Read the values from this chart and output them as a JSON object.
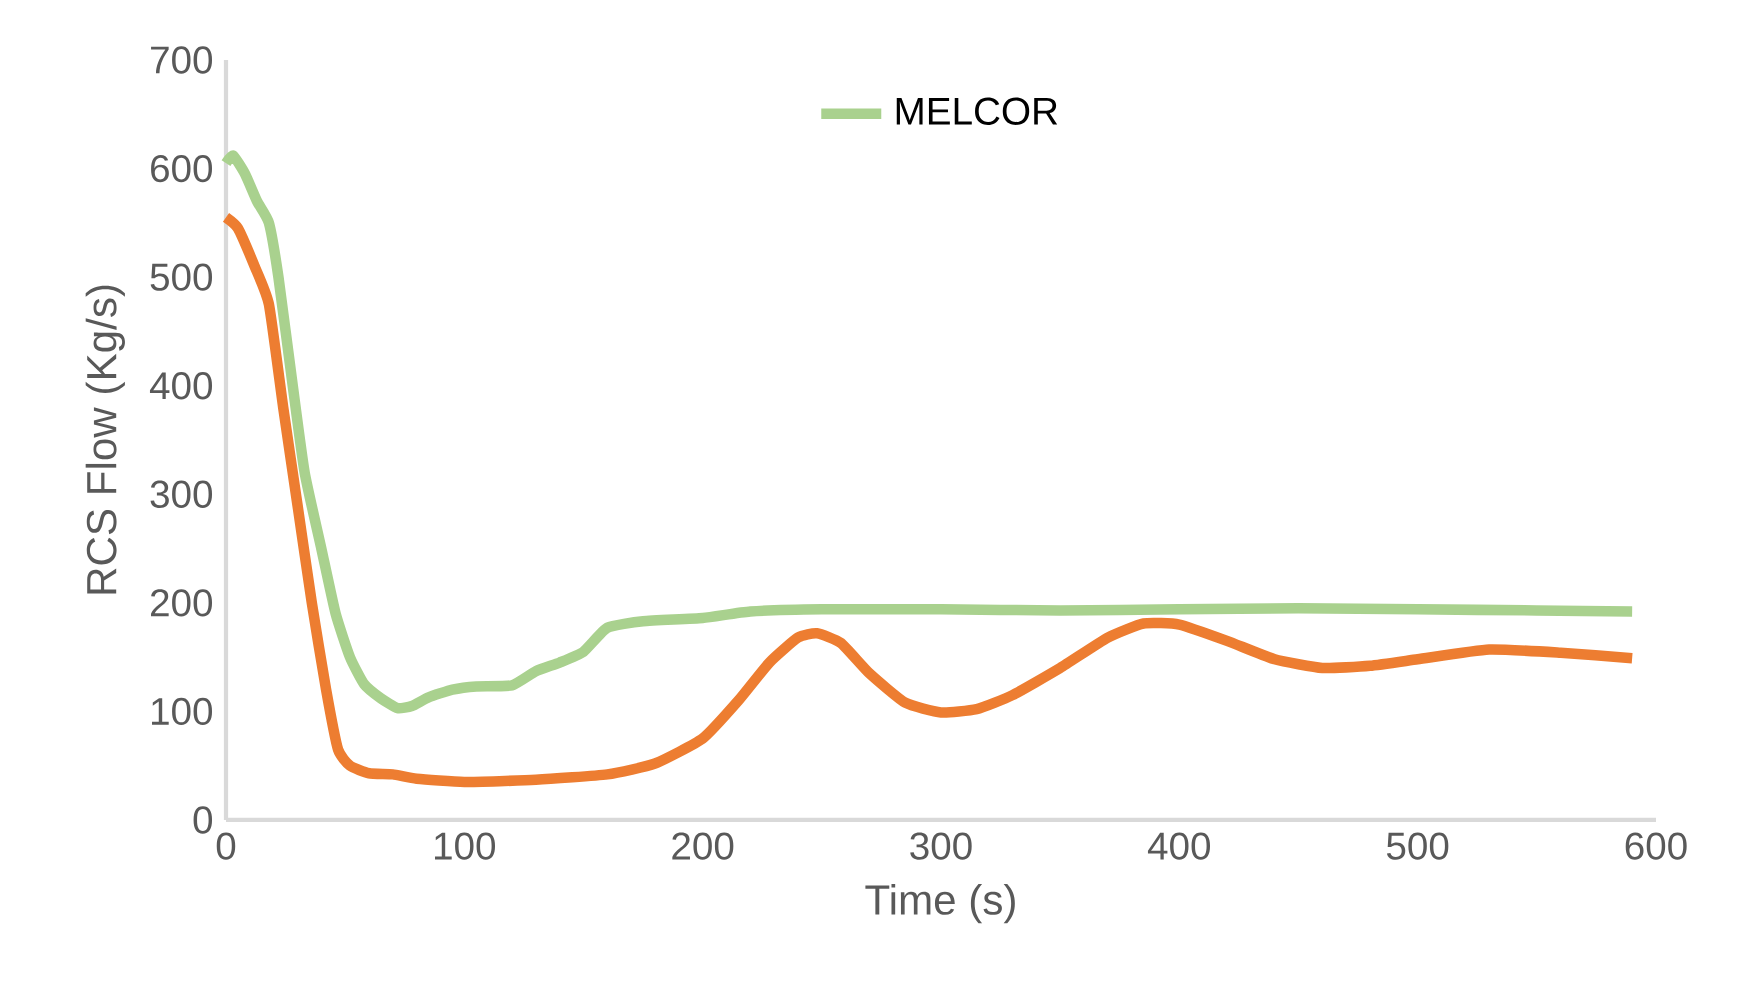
{
  "chart_data": {
    "type": "line",
    "xlabel": "Time (s)",
    "ylabel": "RCS Flow (Kg/s)",
    "xlim": [
      0,
      600
    ],
    "ylim": [
      0,
      700
    ],
    "xticks": [
      0,
      100,
      200,
      300,
      400,
      500,
      600
    ],
    "yticks": [
      0,
      100,
      200,
      300,
      400,
      500,
      600,
      700
    ],
    "grid": false,
    "legend": "top",
    "marker": "none",
    "line_style": "solid",
    "series": [
      {
        "name": "MELCOR",
        "color": "#a9d18e",
        "x": [
          0,
          3,
          8,
          13,
          18,
          22,
          28,
          33,
          40,
          46,
          52,
          58,
          65,
          72,
          78,
          85,
          95,
          105,
          120,
          130,
          140,
          150,
          160,
          175,
          200,
          220,
          250,
          300,
          350,
          400,
          450,
          500,
          550,
          590
        ],
        "values": [
          605,
          612,
          595,
          570,
          550,
          500,
          400,
          320,
          250,
          190,
          150,
          125,
          112,
          103,
          105,
          113,
          120,
          123,
          124,
          137,
          145,
          155,
          177,
          183,
          186,
          192,
          194,
          194,
          193,
          194,
          195,
          194,
          193,
          192
        ]
      },
      {
        "color": "#ed7d31",
        "x": [
          0,
          5,
          12,
          18,
          24,
          30,
          36,
          42,
          47,
          52,
          60,
          70,
          80,
          100,
          130,
          160,
          180,
          200,
          215,
          228,
          240,
          248,
          258,
          270,
          285,
          300,
          315,
          330,
          350,
          370,
          385,
          400,
          420,
          440,
          460,
          480,
          500,
          530,
          560,
          590
        ],
        "values": [
          555,
          545,
          510,
          475,
          380,
          290,
          200,
          120,
          65,
          50,
          43,
          42,
          38,
          35,
          37,
          42,
          52,
          75,
          110,
          145,
          168,
          172,
          163,
          135,
          108,
          99,
          102,
          115,
          140,
          168,
          181,
          180,
          165,
          148,
          140,
          142,
          148,
          157,
          154,
          149
        ]
      }
    ]
  }
}
